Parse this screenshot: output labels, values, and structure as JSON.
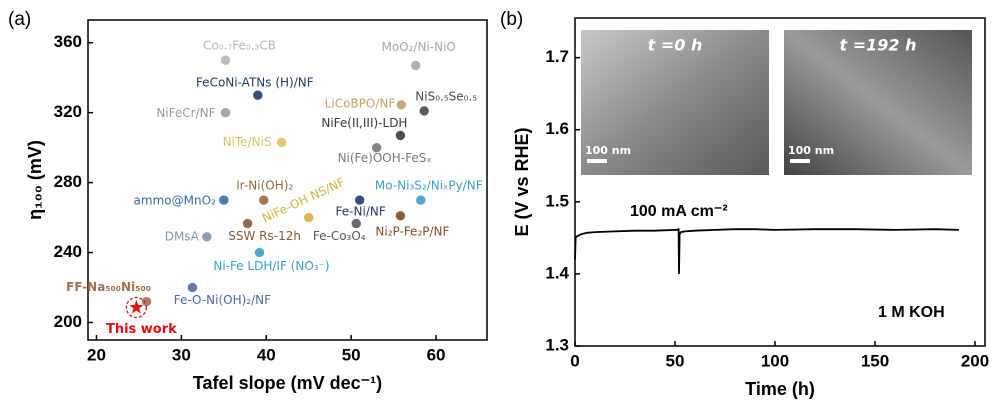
{
  "chart_data": [
    {
      "type": "scatter",
      "panel_label": "(a)",
      "xlabel": "Tafel slope (mV dec⁻¹)",
      "ylabel": "η₁₀₀ (mV)",
      "xlim": [
        19,
        66
      ],
      "xticks": [
        20,
        30,
        40,
        50,
        60
      ],
      "ylim": [
        190,
        373
      ],
      "yticks": [
        200,
        240,
        280,
        320,
        360
      ],
      "points": [
        {
          "name": "Co₀.₇Fe₀.₃CB",
          "x": 35.2,
          "y": 350,
          "color": "#b5b5b5"
        },
        {
          "name": "MoO₂/Ni-NiO",
          "x": 57.6,
          "y": 347,
          "color": "#a8a8a8"
        },
        {
          "name": "FeCoNi-ATNs (H)/NF",
          "x": 39,
          "y": 330,
          "color": "#1f3a6e"
        },
        {
          "name": "NiFeCr/NF",
          "x": 35.2,
          "y": 320,
          "color": "#9a9a9a"
        },
        {
          "name": "LiCoBPO/NF",
          "x": 55.9,
          "y": 324.5,
          "color": "#c9a06a"
        },
        {
          "name": "NiS₀.₅Se₀.₅",
          "x": 58.6,
          "y": 321,
          "color": "#4a4a4a"
        },
        {
          "name": "NiFe(II,III)-LDH",
          "x": 55.8,
          "y": 307,
          "color": "#3a3a3a"
        },
        {
          "name": "NiTe/NiS",
          "x": 41.8,
          "y": 303,
          "color": "#e0c060"
        },
        {
          "name": "Ni(Fe)OOH-FeSₓ",
          "x": 53,
          "y": 300,
          "color": "#7a7a68"
        },
        {
          "name": "ammo@MnO₂",
          "x": 35,
          "y": 270,
          "color": "#3a6aa8"
        },
        {
          "name": "Ir-Ni(OH)₂",
          "x": 39.7,
          "y": 270,
          "color": "#9a6a40"
        },
        {
          "name": "NiFe-OH NS/NF",
          "x": 45,
          "y": 260,
          "color": "#d9b040"
        },
        {
          "name": "Mo-Ni₃S₂/NiₓPy/NF",
          "x": 58.2,
          "y": 270,
          "color": "#3aa0c8"
        },
        {
          "name": "Fe-Ni/NF",
          "x": 51,
          "y": 270,
          "color": "#1f3a6e"
        },
        {
          "name": "DMsA",
          "x": 33,
          "y": 249,
          "color": "#7f93b0"
        },
        {
          "name": "SSW Rs-12h",
          "x": 37.8,
          "y": 256.6,
          "color": "#8a5a3a"
        },
        {
          "name": "Fe-Co₃O₄",
          "x": 50.6,
          "y": 256.6,
          "color": "#5a5a5a"
        },
        {
          "name": "Ni₂P-Fe₂P/NF",
          "x": 55.8,
          "y": 261,
          "color": "#8a4a2a"
        },
        {
          "name": "Ni-Fe LDH/IF (NO₃⁻)",
          "x": 39.2,
          "y": 240,
          "color": "#3aa0c8"
        },
        {
          "name": "Fe-O-Ni(OH)₂/NF",
          "x": 31.3,
          "y": 220,
          "color": "#4a6aa8"
        },
        {
          "name": "FF-Na₅₀₀Ni₅₀₀",
          "x": 25.9,
          "y": 212,
          "color": "#a07050"
        },
        {
          "name": "This work",
          "x": 24.7,
          "y": 208.6,
          "color": "#e01010"
        }
      ]
    },
    {
      "type": "line",
      "panel_label": "(b)",
      "xlabel": "Time (h)",
      "ylabel": "E (V vs RHE)",
      "xlim": [
        0,
        205
      ],
      "xticks": [
        0,
        50,
        100,
        150,
        200
      ],
      "ylim": [
        1.3,
        1.755
      ],
      "yticks": [
        1.3,
        1.4,
        1.5,
        1.6,
        1.7
      ],
      "annotations": [
        "100 mA cm⁻²",
        "1 M KOH"
      ],
      "insets": [
        {
          "title": "t =0 h",
          "scale": "100 nm"
        },
        {
          "title": "t =192 h",
          "scale": "100 nm"
        }
      ],
      "series": [
        {
          "name": "E",
          "color": "#000000",
          "x": [
            0,
            0.3,
            1,
            3,
            6,
            10,
            20,
            30,
            40,
            50,
            51.5,
            51.8,
            52,
            52.3,
            53,
            55,
            60,
            70,
            80,
            90,
            100,
            120,
            140,
            160,
            180,
            192
          ],
          "values": [
            1.42,
            1.45,
            1.452,
            1.455,
            1.457,
            1.458,
            1.459,
            1.46,
            1.46,
            1.461,
            1.461,
            1.463,
            1.4,
            1.455,
            1.458,
            1.459,
            1.46,
            1.461,
            1.462,
            1.462,
            1.461,
            1.462,
            1.462,
            1.461,
            1.462,
            1.461
          ]
        }
      ]
    }
  ]
}
